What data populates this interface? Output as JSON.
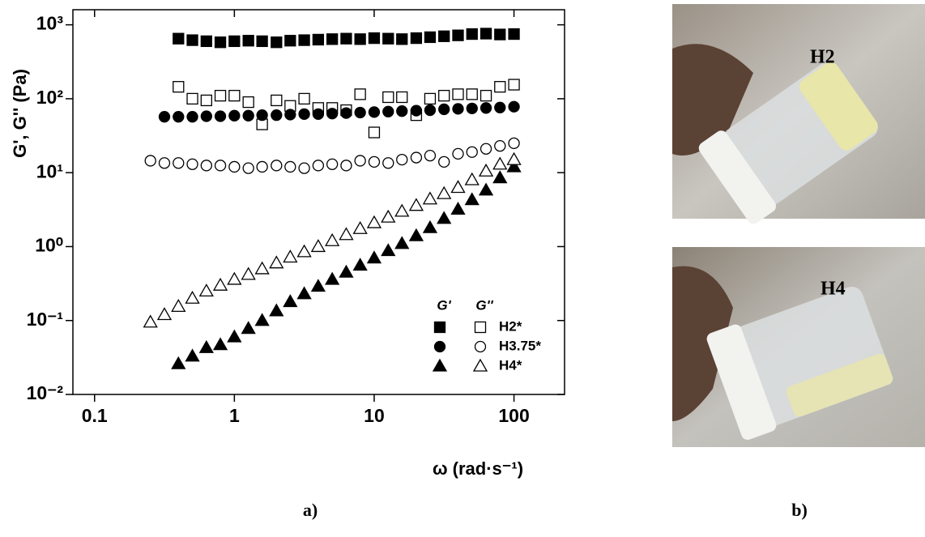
{
  "chart_data": {
    "type": "scatter",
    "xlog": true,
    "ylog": true,
    "color": "#000000",
    "x_label": "ω (rad·s⁻¹)",
    "y_label": "G', G'' (Pa)",
    "xlim": [
      0.07,
      230
    ],
    "ylim": [
      0.01,
      1600
    ],
    "xticks": [
      0.1,
      1,
      10,
      100
    ],
    "yticks": [
      {
        "value": 0.01,
        "label": "10⁻²"
      },
      {
        "value": 0.1,
        "label": "10⁻¹"
      },
      {
        "value": 1,
        "label": "10⁰"
      },
      {
        "value": 10,
        "label": "10¹"
      },
      {
        "value": 100,
        "label": "10²"
      },
      {
        "value": 1000,
        "label": "10³"
      }
    ],
    "legend_columns": [
      "G'",
      "G''"
    ],
    "series": [
      {
        "name": "H2*",
        "marker": "square",
        "filled": true,
        "x": [
          0.398,
          0.501,
          0.631,
          0.794,
          1,
          1.26,
          1.58,
          2,
          2.51,
          3.16,
          3.98,
          5.01,
          6.31,
          7.94,
          10,
          12.6,
          15.8,
          20,
          25.1,
          31.6,
          39.8,
          50.1,
          63.1,
          79.4,
          100
        ],
        "values": [
          650,
          620,
          600,
          580,
          600,
          610,
          600,
          580,
          610,
          620,
          630,
          640,
          650,
          640,
          660,
          650,
          640,
          660,
          680,
          700,
          720,
          750,
          760,
          740,
          750
        ]
      },
      {
        "marker": "square",
        "filled": false,
        "x": [
          0.398,
          0.501,
          0.631,
          0.794,
          1,
          1.26,
          1.58,
          2,
          2.51,
          3.16,
          3.98,
          5.01,
          6.31,
          7.94,
          10,
          12.6,
          15.8,
          20,
          25.1,
          31.6,
          39.8,
          50.1,
          63.1,
          79.4,
          100
        ],
        "values": [
          145,
          100,
          95,
          110,
          110,
          90,
          45,
          95,
          80,
          100,
          75,
          75,
          70,
          115,
          35,
          105,
          105,
          60,
          100,
          110,
          115,
          115,
          110,
          145,
          155
        ]
      },
      {
        "name": "H3.75*",
        "marker": "circle",
        "filled": true,
        "x": [
          0.316,
          0.398,
          0.501,
          0.631,
          0.794,
          1,
          1.26,
          1.58,
          2,
          2.51,
          3.16,
          3.98,
          5.01,
          6.31,
          7.94,
          10,
          12.6,
          15.8,
          20,
          25.1,
          31.6,
          39.8,
          50.1,
          63.1,
          79.4,
          100
        ],
        "values": [
          57,
          57,
          57,
          58,
          58,
          59,
          59,
          60,
          60,
          61,
          62,
          62,
          63,
          64,
          65,
          66,
          67,
          68,
          69,
          70,
          72,
          73,
          74,
          75,
          76,
          78
        ]
      },
      {
        "marker": "circle",
        "filled": false,
        "x": [
          0.251,
          0.316,
          0.398,
          0.501,
          0.631,
          0.794,
          1,
          1.26,
          1.58,
          2,
          2.51,
          3.16,
          3.98,
          5.01,
          6.31,
          7.94,
          10,
          12.6,
          15.8,
          20,
          25.1,
          31.6,
          39.8,
          50.1,
          63.1,
          79.4,
          100
        ],
        "values": [
          14.5,
          13.5,
          13.5,
          13,
          12.5,
          12.5,
          12,
          11.5,
          12,
          12.5,
          12,
          11.5,
          12.5,
          13,
          12.5,
          14.5,
          14,
          13.5,
          15,
          16,
          17,
          14,
          18,
          19,
          21,
          23,
          25
        ]
      },
      {
        "name": "H4*",
        "marker": "triangle",
        "filled": true,
        "x": [
          0.398,
          0.501,
          0.631,
          0.794,
          1,
          1.26,
          1.58,
          2,
          2.51,
          3.16,
          3.98,
          5.01,
          6.31,
          7.94,
          10,
          12.6,
          15.8,
          20,
          25.1,
          31.6,
          39.8,
          50.1,
          63.1,
          79.4,
          100
        ],
        "values": [
          0.026,
          0.033,
          0.043,
          0.047,
          0.06,
          0.078,
          0.1,
          0.135,
          0.18,
          0.23,
          0.29,
          0.36,
          0.45,
          0.56,
          0.7,
          0.88,
          1.1,
          1.4,
          1.8,
          2.4,
          3.2,
          4.3,
          5.8,
          8.5,
          12
        ]
      },
      {
        "marker": "triangle",
        "filled": false,
        "x": [
          0.251,
          0.316,
          0.398,
          0.501,
          0.631,
          0.794,
          1,
          1.26,
          1.58,
          2,
          2.51,
          3.16,
          3.98,
          5.01,
          6.31,
          7.94,
          10,
          12.6,
          15.8,
          20,
          25.1,
          31.6,
          39.8,
          50.1,
          63.1,
          79.4,
          100
        ],
        "values": [
          0.095,
          0.12,
          0.155,
          0.2,
          0.25,
          0.3,
          0.36,
          0.42,
          0.5,
          0.6,
          0.72,
          0.85,
          1,
          1.2,
          1.45,
          1.75,
          2.1,
          2.5,
          3,
          3.6,
          4.4,
          5.2,
          6.3,
          8,
          10.5,
          13,
          15
        ]
      }
    ]
  },
  "photos": [
    {
      "label": "H2"
    },
    {
      "label": "H4"
    }
  ],
  "panel_labels": [
    "a)",
    "b)"
  ]
}
